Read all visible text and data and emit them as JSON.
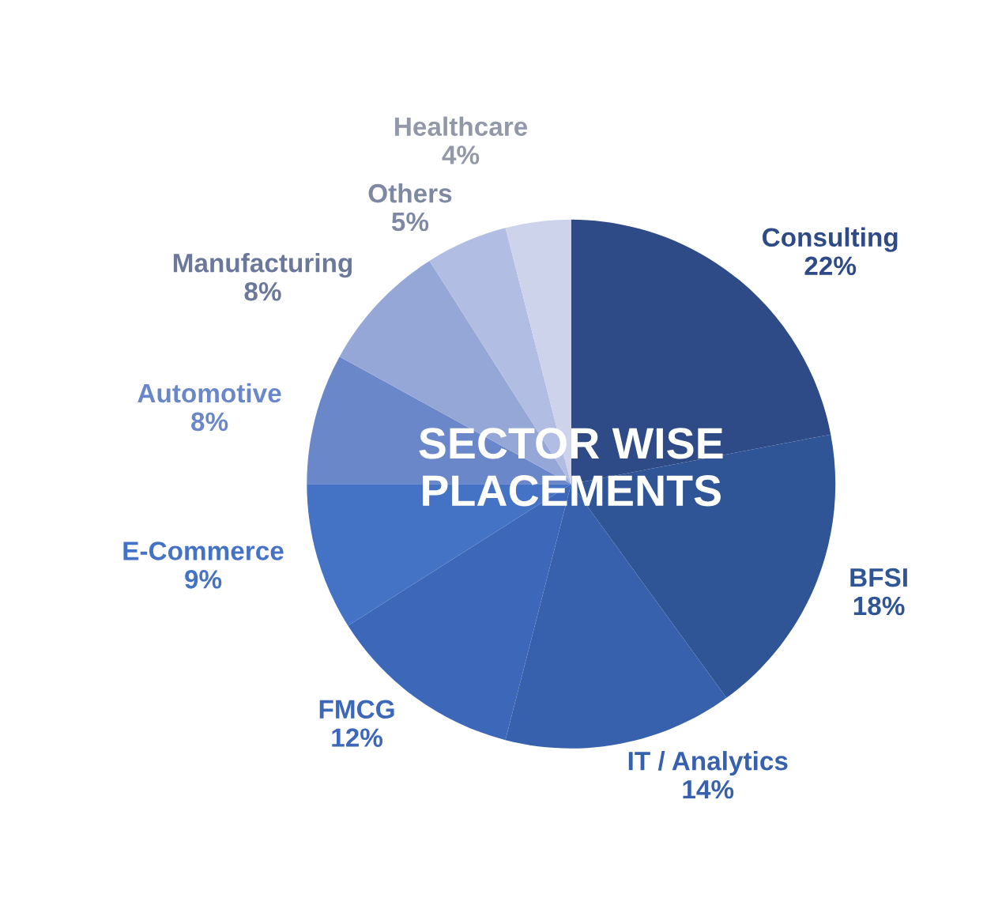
{
  "chart_data": {
    "type": "pie",
    "title": "SECTOR WISE\nPLACEMENTS",
    "categories": [
      "Consulting",
      "BFSI",
      "IT / Analytics",
      "FMCG",
      "E-Commerce",
      "Automotive",
      "Manufacturing",
      "Others",
      "Healthcare"
    ],
    "values": [
      22,
      18,
      14,
      12,
      9,
      8,
      8,
      5,
      4
    ],
    "value_labels": [
      "22%",
      "18%",
      "14%",
      "12%",
      "9%",
      "8%",
      "8%",
      "5%",
      "4%"
    ],
    "colors": [
      "#2e4a87",
      "#2f5597",
      "#3761ad",
      "#3d68ba",
      "#4472c4",
      "#6a87c9",
      "#95a7d6",
      "#b1bde2",
      "#ccd3eb"
    ],
    "legend": false
  }
}
